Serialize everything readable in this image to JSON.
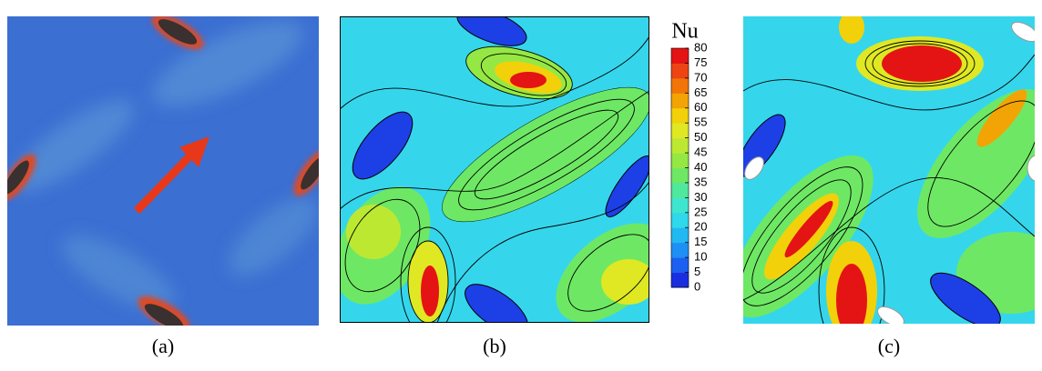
{
  "panels": [
    "(a)",
    "(b)",
    "(c)"
  ],
  "colorbar": {
    "title": "Nu",
    "lim": [
      0,
      80
    ],
    "ticks": [
      0,
      5,
      10,
      15,
      20,
      25,
      30,
      35,
      40,
      45,
      50,
      55,
      60,
      65,
      70,
      75,
      80
    ],
    "colors": [
      "#1a2ee0",
      "#1d5ff0",
      "#1e8ff5",
      "#22b8f2",
      "#2fd8ea",
      "#3fe6cf",
      "#4fe89d",
      "#6ee864",
      "#95e843",
      "#bde832",
      "#dfe822",
      "#f2d10a",
      "#f3a405",
      "#f27508",
      "#ee4414",
      "#e41414"
    ]
  }
}
